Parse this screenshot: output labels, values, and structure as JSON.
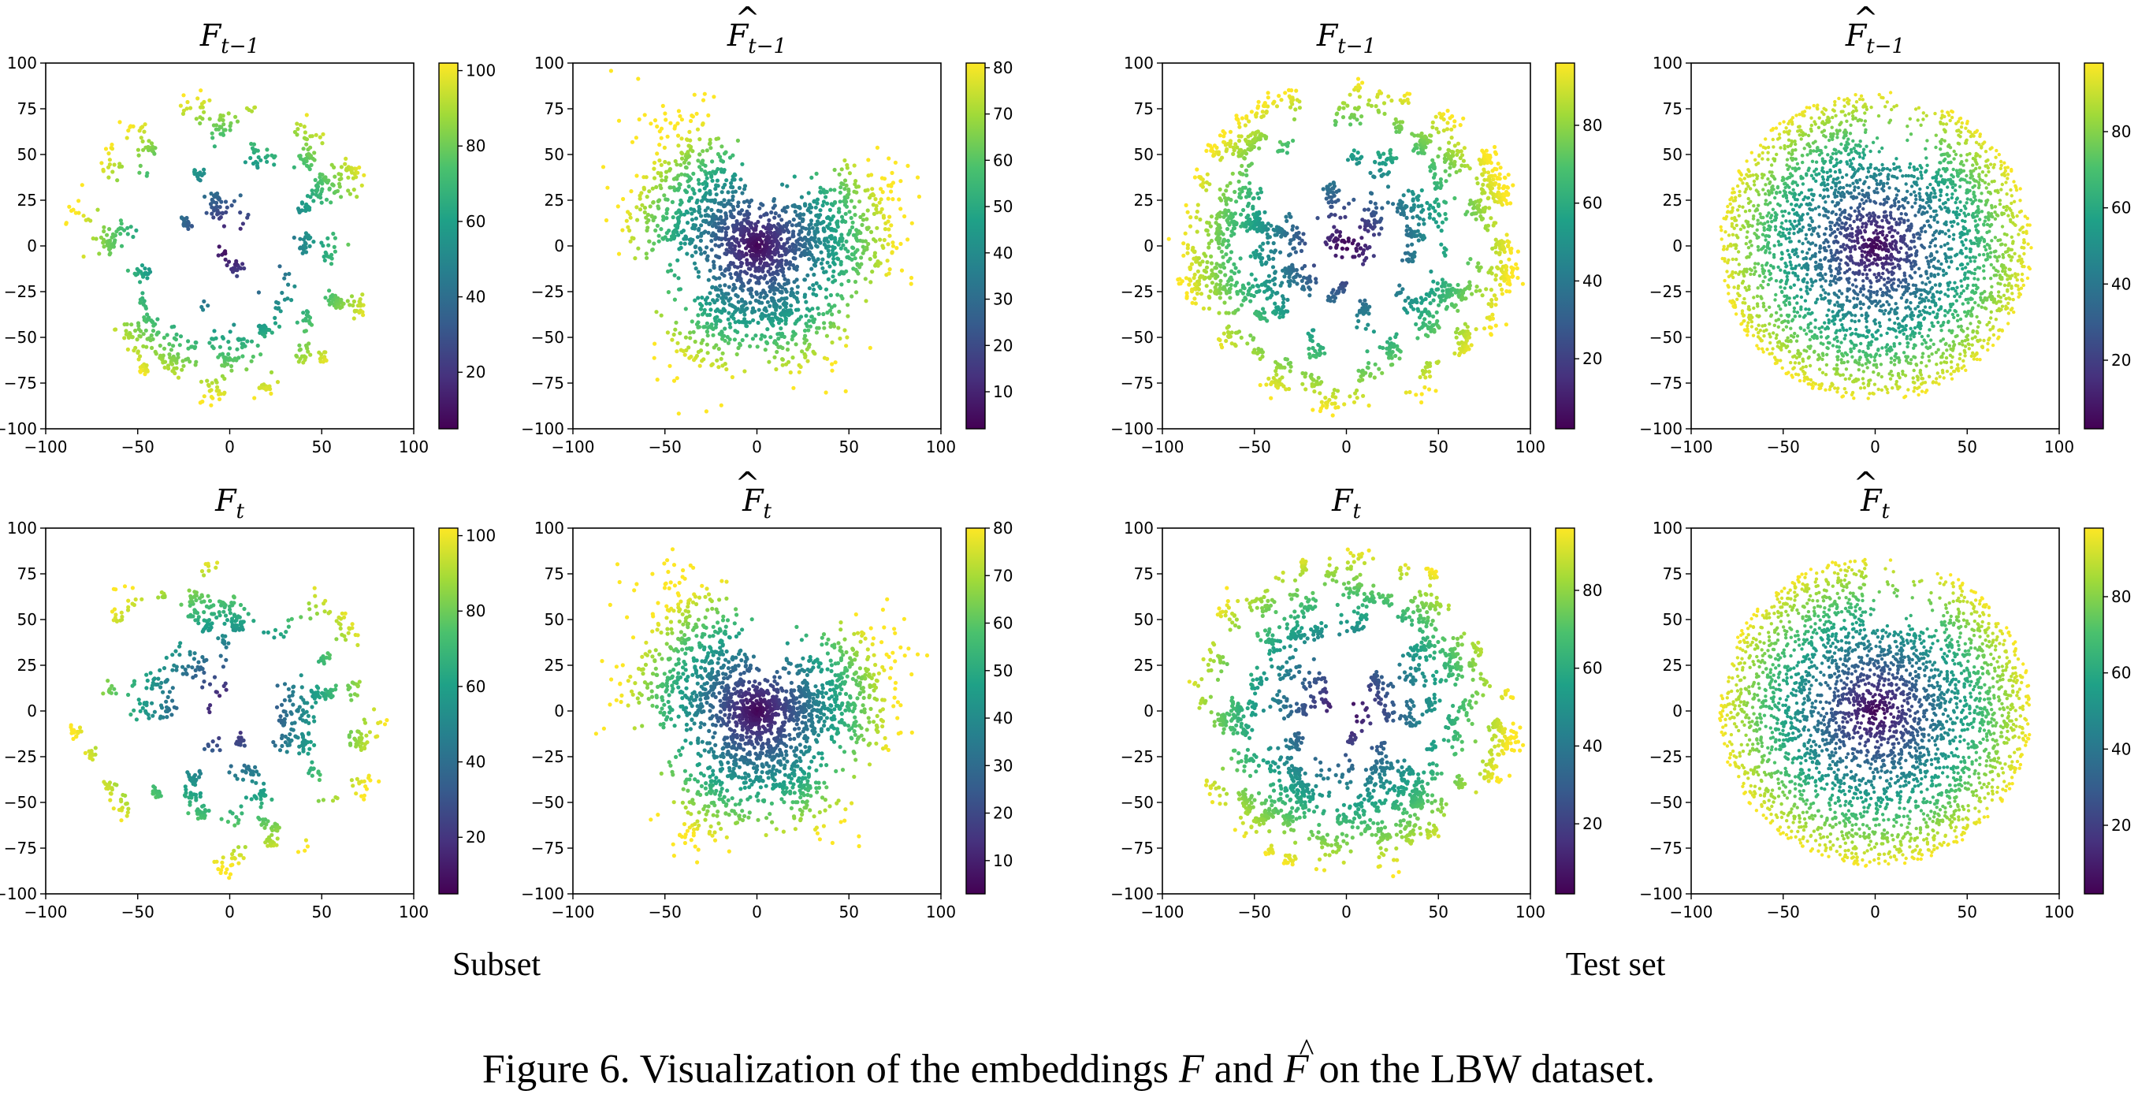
{
  "figure": {
    "group_labels": [
      "Subset",
      "Test set"
    ],
    "caption": {
      "prefix": "Figure 6. Visualization of the embeddings ",
      "var_f": "F",
      "middle": " and ",
      "var_fhat": "F",
      "hat": "^",
      "suffix": " on the LBW dataset."
    },
    "colormap": [
      "#440154",
      "#46327e",
      "#365c8d",
      "#277f8e",
      "#1fa187",
      "#4ac16d",
      "#a0da39",
      "#fde725"
    ]
  },
  "chart_data": [
    {
      "type": "scatter",
      "id": "subset-prev-F",
      "group": "Subset",
      "title": {
        "base": "F",
        "hat": false,
        "sub": "t−1"
      },
      "xlim": [
        -100,
        100
      ],
      "ylim": [
        -100,
        100
      ],
      "xticks": [
        "−100",
        "−50",
        "0",
        "50",
        "100"
      ],
      "yticks": [
        "−100",
        "−75",
        "−50",
        "−25",
        "0",
        "25",
        "50",
        "75",
        "100"
      ],
      "colorbar": {
        "min": 5,
        "max": 102,
        "ticks": [
          "20",
          "40",
          "60",
          "80",
          "100"
        ]
      },
      "pattern": "clusters",
      "extent": 85,
      "spread": 0.88,
      "density": "sparse"
    },
    {
      "type": "scatter",
      "id": "subset-prev-Fhat",
      "group": "Subset",
      "title": {
        "base": "F",
        "hat": true,
        "sub": "t−1"
      },
      "xlim": [
        -100,
        100
      ],
      "ylim": [
        -100,
        100
      ],
      "xticks": [
        "−100",
        "−50",
        "0",
        "50",
        "100"
      ],
      "yticks": [
        "−100",
        "−75",
        "−50",
        "−25",
        "0",
        "25",
        "50",
        "75",
        "100"
      ],
      "colorbar": {
        "min": 2,
        "max": 81,
        "ticks": [
          "10",
          "20",
          "30",
          "40",
          "50",
          "60",
          "70",
          "80"
        ]
      },
      "pattern": "star",
      "extent": 75,
      "spread": 0.85,
      "density": "medium"
    },
    {
      "type": "scatter",
      "id": "test-prev-F",
      "group": "Test set",
      "title": {
        "base": "F",
        "hat": false,
        "sub": "t−1"
      },
      "xlim": [
        -100,
        100
      ],
      "ylim": [
        -100,
        100
      ],
      "xticks": [
        "−100",
        "−50",
        "0",
        "50",
        "100"
      ],
      "yticks": [
        "−100",
        "−75",
        "−50",
        "−25",
        "0",
        "25",
        "50",
        "75",
        "100"
      ],
      "colorbar": {
        "min": 2,
        "max": 96,
        "ticks": [
          "20",
          "40",
          "60",
          "80"
        ]
      },
      "pattern": "clusters",
      "extent": 90,
      "spread": 0.95,
      "density": "medium"
    },
    {
      "type": "scatter",
      "id": "test-prev-Fhat",
      "group": "Test set",
      "title": {
        "base": "F",
        "hat": true,
        "sub": "t−1"
      },
      "xlim": [
        -100,
        100
      ],
      "ylim": [
        -100,
        100
      ],
      "xticks": [
        "−100",
        "−50",
        "0",
        "50",
        "100"
      ],
      "yticks": [
        "−100",
        "−75",
        "−50",
        "−25",
        "0",
        "25",
        "50",
        "75",
        "100"
      ],
      "colorbar": {
        "min": 2,
        "max": 98,
        "ticks": [
          "20",
          "40",
          "60",
          "80"
        ]
      },
      "pattern": "blob",
      "extent": 85,
      "spread": 0.9,
      "density": "dense"
    },
    {
      "type": "scatter",
      "id": "subset-cur-F",
      "group": "Subset",
      "title": {
        "base": "F",
        "hat": false,
        "sub": "t"
      },
      "xlim": [
        -100,
        100
      ],
      "ylim": [
        -100,
        100
      ],
      "xticks": [
        "−100",
        "−50",
        "0",
        "50",
        "100"
      ],
      "yticks": [
        "−100",
        "−75",
        "−50",
        "−25",
        "0",
        "25",
        "50",
        "75",
        "100"
      ],
      "colorbar": {
        "min": 5,
        "max": 102,
        "ticks": [
          "20",
          "40",
          "60",
          "80",
          "100"
        ]
      },
      "pattern": "clusters",
      "extent": 85,
      "spread": 0.88,
      "density": "sparse"
    },
    {
      "type": "scatter",
      "id": "subset-cur-Fhat",
      "group": "Subset",
      "title": {
        "base": "F",
        "hat": true,
        "sub": "t"
      },
      "xlim": [
        -100,
        100
      ],
      "ylim": [
        -100,
        100
      ],
      "xticks": [
        "−100",
        "−50",
        "0",
        "50",
        "100"
      ],
      "yticks": [
        "−100",
        "−75",
        "−50",
        "−25",
        "0",
        "25",
        "50",
        "75",
        "100"
      ],
      "colorbar": {
        "min": 3,
        "max": 80,
        "ticks": [
          "10",
          "20",
          "30",
          "40",
          "50",
          "60",
          "70",
          "80"
        ]
      },
      "pattern": "star",
      "extent": 75,
      "spread": 0.85,
      "density": "medium"
    },
    {
      "type": "scatter",
      "id": "test-cur-F",
      "group": "Test set",
      "title": {
        "base": "F",
        "hat": false,
        "sub": "t"
      },
      "xlim": [
        -100,
        100
      ],
      "ylim": [
        -100,
        100
      ],
      "xticks": [
        "−100",
        "−50",
        "0",
        "50",
        "100"
      ],
      "yticks": [
        "−100",
        "−75",
        "−50",
        "−25",
        "0",
        "25",
        "50",
        "75",
        "100"
      ],
      "colorbar": {
        "min": 2,
        "max": 96,
        "ticks": [
          "20",
          "40",
          "60",
          "80"
        ]
      },
      "pattern": "clusters",
      "extent": 90,
      "spread": 0.95,
      "density": "medium"
    },
    {
      "type": "scatter",
      "id": "test-cur-Fhat",
      "group": "Test set",
      "title": {
        "base": "F",
        "hat": true,
        "sub": "t"
      },
      "xlim": [
        -100,
        100
      ],
      "ylim": [
        -100,
        100
      ],
      "xticks": [
        "−100",
        "−50",
        "0",
        "50",
        "100"
      ],
      "yticks": [
        "−100",
        "−75",
        "−50",
        "−25",
        "0",
        "25",
        "50",
        "75",
        "100"
      ],
      "colorbar": {
        "min": 2,
        "max": 98,
        "ticks": [
          "20",
          "40",
          "60",
          "80"
        ]
      },
      "pattern": "blob",
      "extent": 85,
      "spread": 0.9,
      "density": "dense"
    }
  ]
}
